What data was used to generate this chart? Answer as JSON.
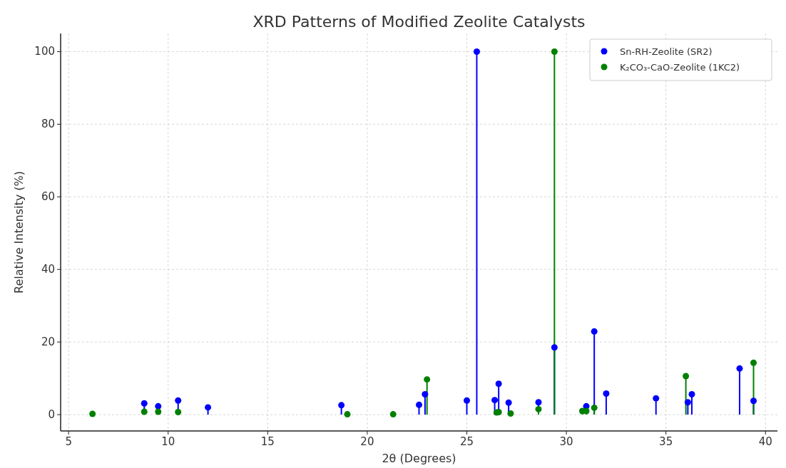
{
  "chart_data": {
    "type": "lollipop",
    "title": "XRD Patterns of Modified Zeolite Catalysts",
    "xlabel": "2θ (Degrees)",
    "ylabel": "Relative Intensity (%)",
    "xlim": [
      4.6,
      40.6
    ],
    "ylim": [
      -4.5,
      105
    ],
    "xticks": [
      5,
      10,
      15,
      20,
      25,
      30,
      35,
      40
    ],
    "yticks": [
      0,
      20,
      40,
      60,
      80,
      100
    ],
    "grid": true,
    "legend": "top right",
    "marker": "circle",
    "series": [
      {
        "name": "Sn-RH-Zeolite (SR2)",
        "color": "#0000ff",
        "x": [
          8.8,
          9.5,
          10.5,
          12.0,
          18.7,
          22.6,
          22.9,
          25.0,
          25.5,
          26.4,
          26.6,
          27.1,
          28.6,
          29.4,
          31.0,
          31.4,
          32.0,
          34.5,
          36.1,
          36.3,
          38.7,
          39.4
        ],
        "values": [
          3.1,
          2.3,
          3.9,
          2.0,
          2.6,
          2.7,
          5.6,
          3.9,
          100,
          4.0,
          8.5,
          3.3,
          3.4,
          18.5,
          2.3,
          22.9,
          5.8,
          4.5,
          3.4,
          5.6,
          12.7,
          3.8
        ]
      },
      {
        "name": "K₂CO₃-CaO-Zeolite (1KC2)",
        "color": "#008000",
        "x": [
          6.2,
          8.8,
          9.5,
          10.5,
          19.0,
          21.3,
          23.0,
          26.5,
          26.6,
          27.2,
          28.6,
          29.4,
          30.8,
          31.0,
          31.4,
          36.0,
          39.4
        ],
        "values": [
          0.2,
          0.8,
          0.8,
          0.7,
          0.1,
          0.1,
          9.7,
          0.6,
          0.7,
          0.3,
          1.5,
          100,
          1.0,
          1.0,
          1.9,
          10.6,
          14.3
        ]
      }
    ]
  }
}
